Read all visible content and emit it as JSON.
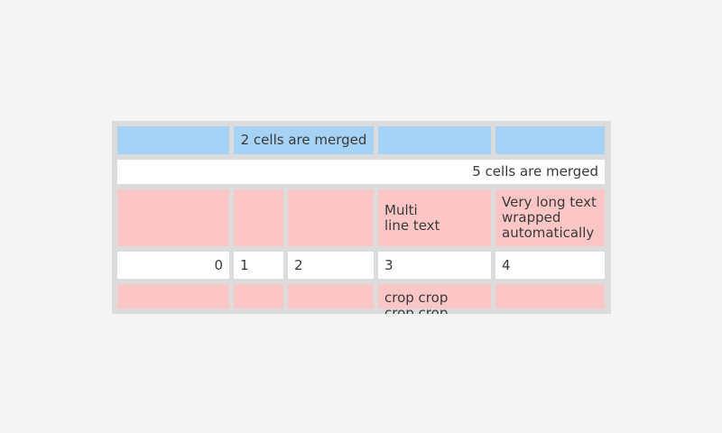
{
  "page": {
    "background": "#f4f4f5"
  },
  "table": {
    "background": "#dcdcdd",
    "text_color": "#3a3a3a",
    "cell_colors": {
      "blue": "#a6d3f5",
      "pink": "#fbc6c5",
      "white": "#ffffff"
    },
    "rows": [
      {
        "name": "header-row",
        "cells": [
          {
            "text": ""
          },
          {
            "text": "2 cells are merged",
            "merged": 2,
            "align": "center"
          },
          {
            "text": ""
          },
          {
            "text": ""
          }
        ]
      },
      {
        "name": "full-width-row",
        "cells": [
          {
            "text": "5 cells are merged",
            "merged": 5,
            "align": "right"
          }
        ]
      },
      {
        "name": "pink-text-row",
        "cells": [
          {
            "text": ""
          },
          {
            "text": ""
          },
          {
            "text": ""
          },
          {
            "text": "Multi\nline text"
          },
          {
            "text": "Very long text wrapped automatically"
          }
        ]
      },
      {
        "name": "number-row",
        "cells": [
          {
            "text": "0",
            "align": "right"
          },
          {
            "text": "1"
          },
          {
            "text": "2"
          },
          {
            "text": "3"
          },
          {
            "text": "4"
          }
        ]
      },
      {
        "name": "cropped-row",
        "cells": [
          {
            "text": ""
          },
          {
            "text": ""
          },
          {
            "text": ""
          },
          {
            "text": "crop crop crop crop"
          },
          {
            "text": ""
          }
        ]
      }
    ]
  }
}
